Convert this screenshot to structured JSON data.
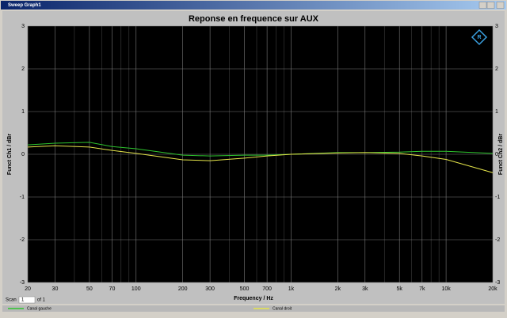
{
  "window_title": "Sweep Graph1",
  "chart_data": {
    "type": "line",
    "title": "Reponse en frequence sur AUX",
    "x_label": "Frequency / Hz",
    "y_label": "Funct Ch1 / dBr",
    "y2_label": "Funct Ch2 / dBr",
    "x_scale": "log",
    "grid": true,
    "xlim": [
      20,
      20000
    ],
    "xticks": [
      20,
      30,
      50,
      70,
      100,
      200,
      300,
      500,
      700,
      {
        "value": 1000,
        "label": "1k"
      },
      {
        "value": 2000,
        "label": "2k"
      },
      {
        "value": 3000,
        "label": "3k"
      },
      {
        "value": 5000,
        "label": "5k"
      },
      {
        "value": 7000,
        "label": "7k"
      },
      {
        "value": 10000,
        "label": "10k"
      },
      {
        "value": 20000,
        "label": "20k"
      }
    ],
    "x_minor_grid": [
      40,
      60,
      80,
      90,
      400,
      600,
      800,
      900,
      4000,
      6000,
      8000,
      9000
    ],
    "ylim": [
      -3,
      3
    ],
    "yticks": [
      -3,
      -2,
      -1,
      0,
      1,
      2,
      3
    ],
    "y2lim": [
      -3,
      3
    ],
    "y2ticks": [
      -3,
      -2,
      -1,
      0,
      1,
      2,
      3
    ],
    "x": [
      20,
      30,
      50,
      70,
      100,
      200,
      300,
      500,
      700,
      1000,
      2000,
      3000,
      5000,
      7000,
      10000,
      20000
    ],
    "series": [
      {
        "name": "Canal gauche",
        "color": "#2ec52e",
        "values": [
          0.22,
          0.26,
          0.28,
          0.18,
          0.13,
          -0.02,
          -0.04,
          -0.02,
          -0.02,
          0,
          0.04,
          0.04,
          0.05,
          0.07,
          0.07,
          0.02
        ]
      },
      {
        "name": "Canal droit",
        "color": "#e6e64a",
        "axis": "y2",
        "values": [
          0.17,
          0.2,
          0.17,
          0.09,
          0.02,
          -0.13,
          -0.15,
          -0.09,
          -0.04,
          0,
          0.03,
          0.04,
          0.02,
          -0.04,
          -0.12,
          -0.43
        ]
      }
    ]
  },
  "scan": {
    "label": "Scan",
    "value": 1,
    "of": "of 1"
  }
}
